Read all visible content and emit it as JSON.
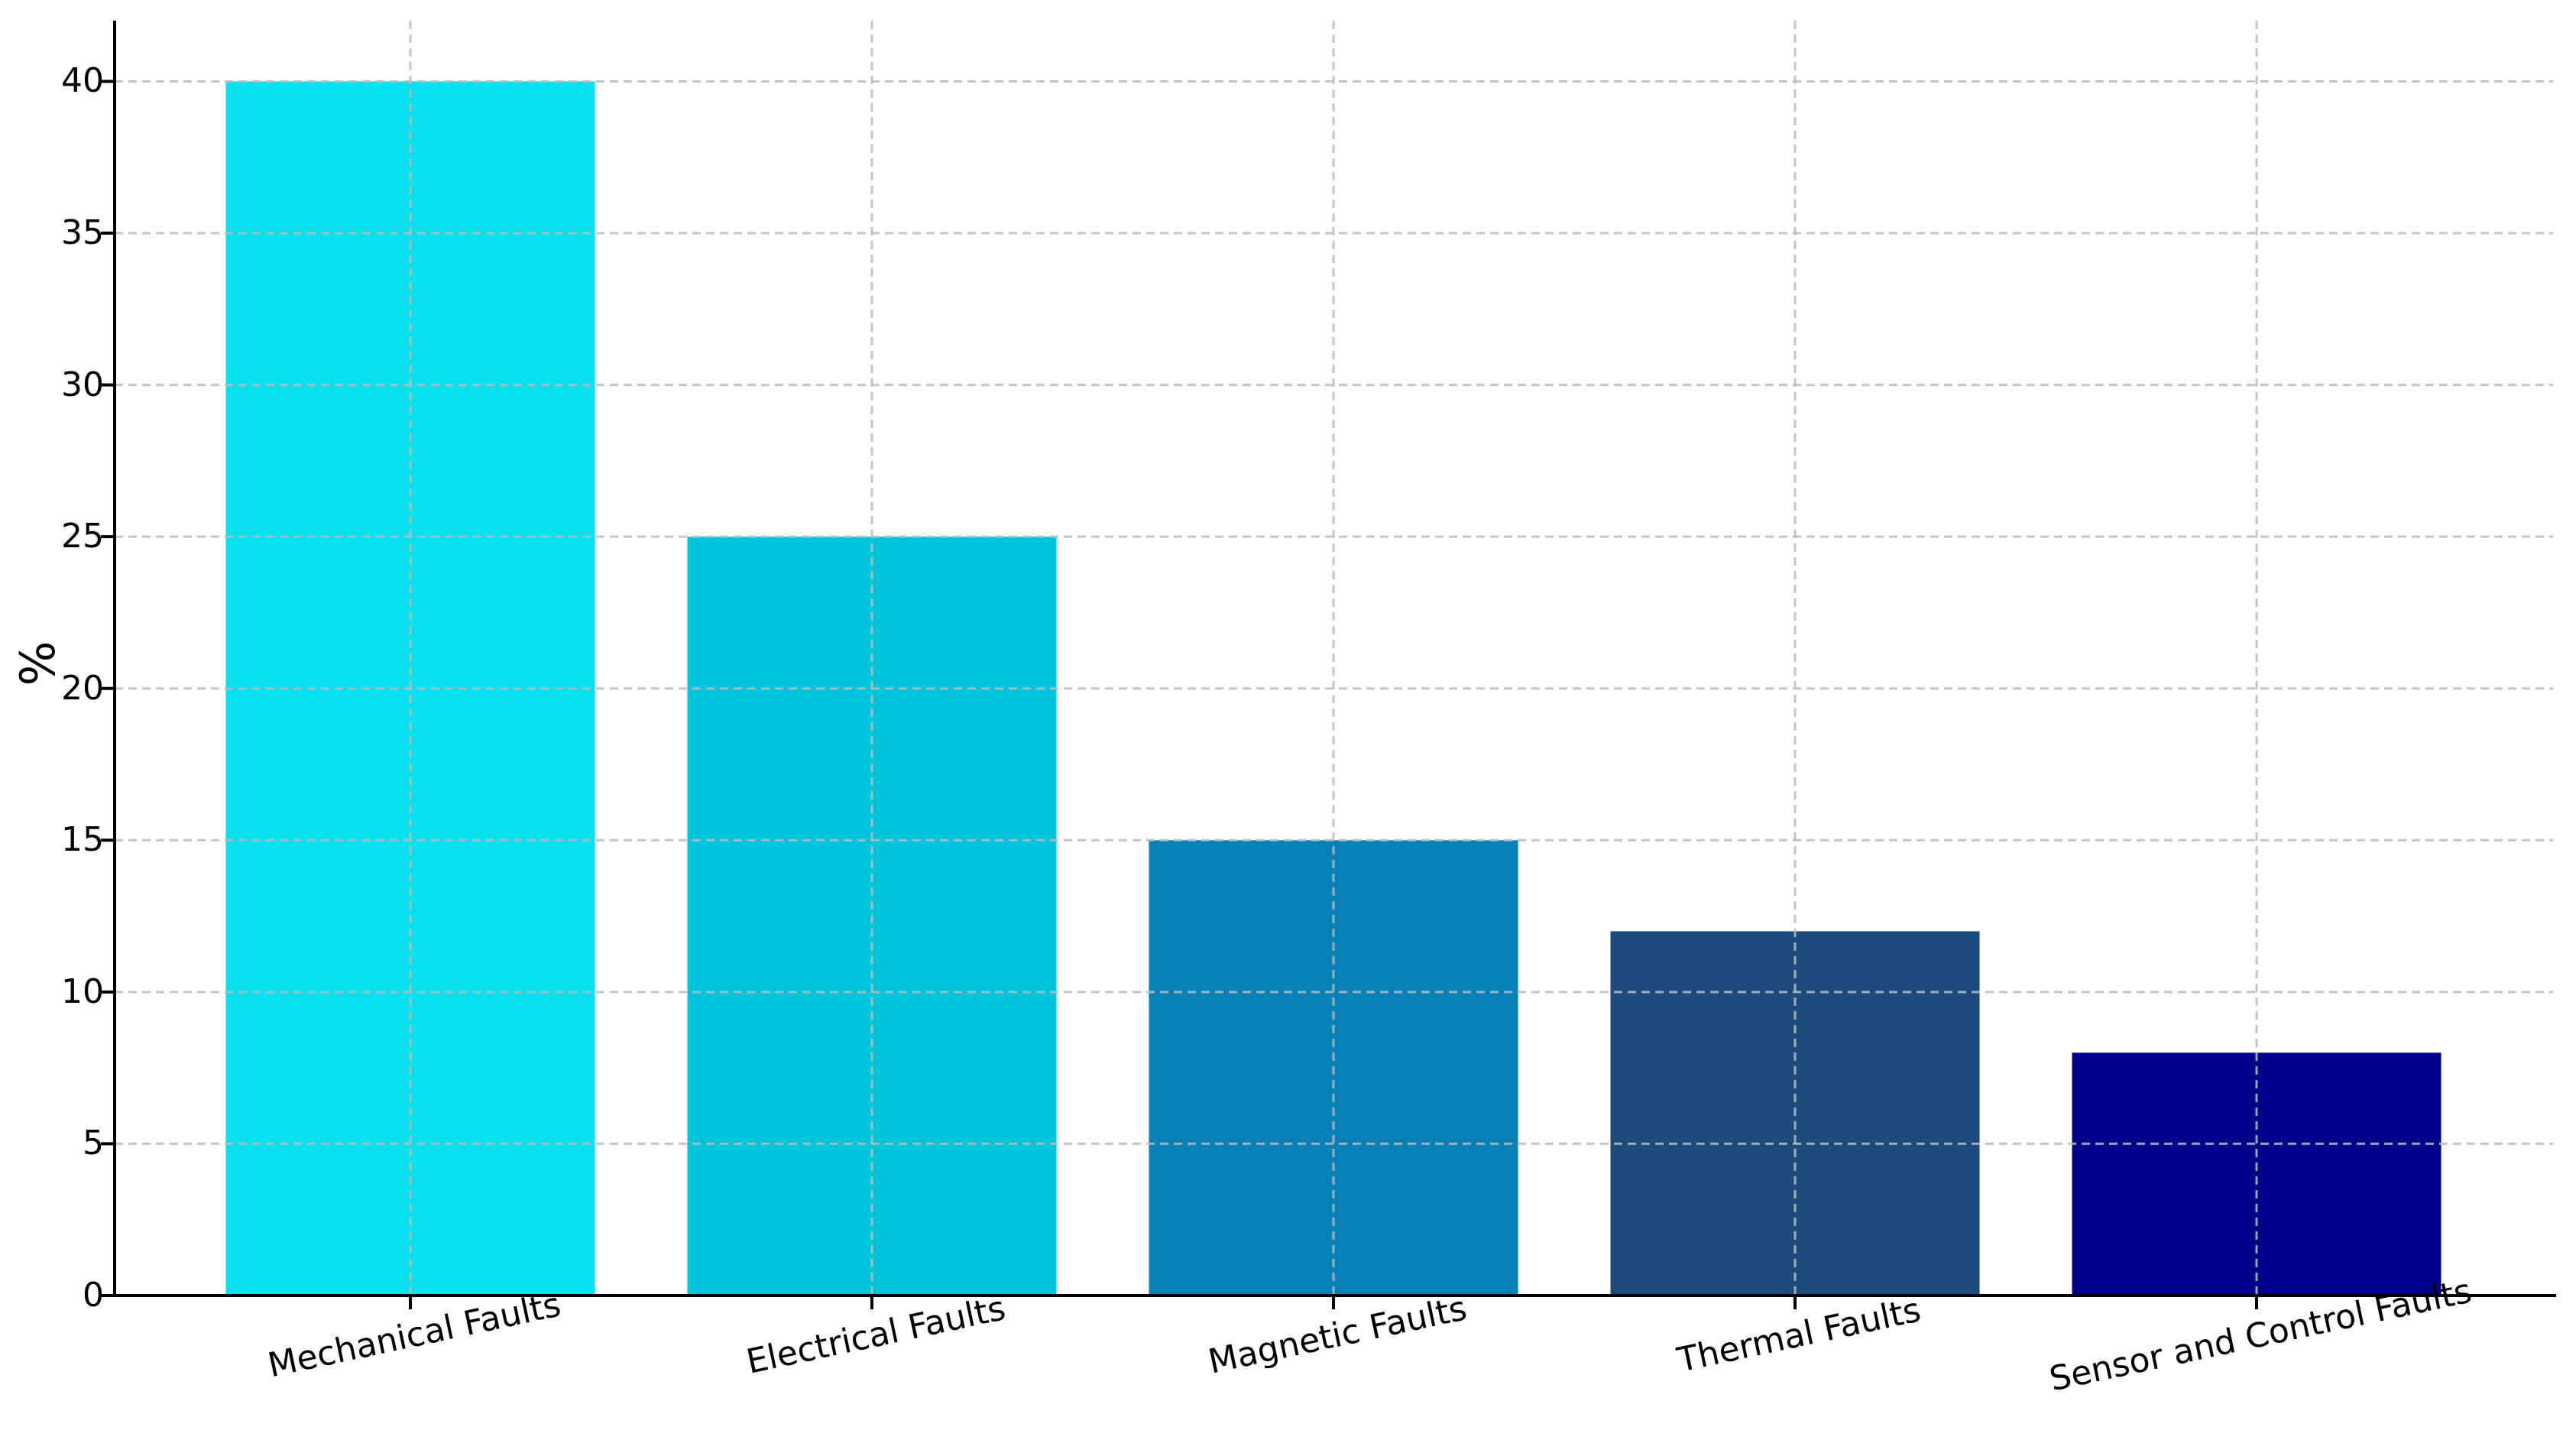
{
  "chart_data": {
    "type": "bar",
    "title": "",
    "xlabel": "",
    "ylabel": "%",
    "categories": [
      "Mechanical Faults",
      "Electrical Faults",
      "Magnetic Faults",
      "Thermal Faults",
      "Sensor and Control Faults"
    ],
    "values": [
      40,
      25,
      15,
      12,
      8
    ],
    "bar_colors": [
      "#08E0ED",
      "#00C4DA",
      "#0581B7",
      "#1D4B7C",
      "#00008B"
    ],
    "yticks": [
      0,
      5,
      10,
      15,
      20,
      25,
      30,
      35,
      40
    ],
    "ylim": [
      0,
      42
    ],
    "xtick_rotation_deg": 12,
    "grid": "dashed gridlines on both axes, drawn above bars",
    "grid_color": "#bbbbbb",
    "axis_color": "#000000",
    "legend": "none"
  }
}
